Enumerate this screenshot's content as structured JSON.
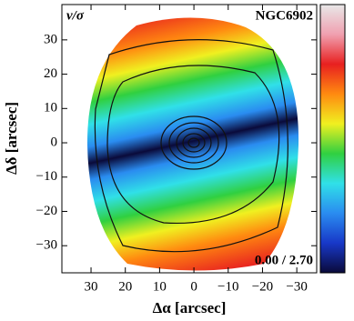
{
  "chart_data": {
    "type": "map",
    "title": "NGC6902",
    "quantity_label": "v/σ",
    "colorbar_label": "0.00 / 2.70",
    "xlabel": "Δα [arcsec]",
    "ylabel": "Δδ [arcsec]",
    "xlim": [
      38.5,
      -35.8
    ],
    "ylim": [
      -37.9,
      40.3
    ],
    "xticks": [
      30,
      20,
      10,
      0,
      {
        "value": -10,
        "label": "−10"
      },
      {
        "value": -20,
        "label": "−20"
      },
      {
        "value": -30,
        "label": "−30"
      }
    ],
    "yticks": [
      {
        "value": -30,
        "label": "−30"
      },
      {
        "value": -20,
        "label": "−20"
      },
      {
        "value": -10,
        "label": "−10"
      },
      0,
      10,
      20,
      30
    ],
    "colormap": [
      "#0a0a3a",
      "#1838c8",
      "#2a8cf0",
      "#30e0e8",
      "#30d040",
      "#f0f020",
      "#ff8a10",
      "#e82020",
      "#f0a0b0",
      "#e8e8e8"
    ]
  }
}
